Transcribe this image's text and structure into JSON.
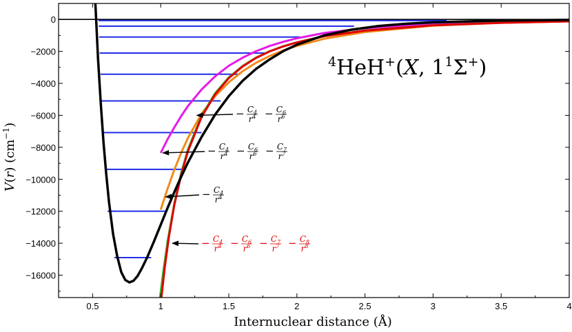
{
  "chart_data": {
    "type": "line",
    "title": "⁴HeH⁺(X, 1¹Σ⁺)",
    "title_parts": {
      "pre_sup": "4",
      "species": "HeH",
      "species_sup": "+",
      "open": "(",
      "state": "X",
      "sep": ", 1",
      "state_sup": "1",
      "sigma": "Σ",
      "sigma_sup": "+",
      "close": ")"
    },
    "xlabel": "Internuclear distance (Å)",
    "ylabel": "V(r) (cm⁻¹)",
    "ylabel_parts": {
      "v": "V",
      "open": "(",
      "r": "r",
      "close": ")",
      "unit": " (cm",
      "exp": "−1",
      "unit_close": ")"
    },
    "xlim": [
      0.25,
      4.0
    ],
    "ylim": [
      -17400,
      1000
    ],
    "x_ticks": [
      "0.5",
      "1",
      "1.5",
      "2",
      "2.5",
      "3",
      "3.5",
      "4"
    ],
    "x_tick_values": [
      0.5,
      1.0,
      1.5,
      2.0,
      2.5,
      3.0,
      3.5,
      4.0
    ],
    "y_ticks": [
      "0",
      "−2000",
      "−4000",
      "−6000",
      "−8000",
      "−10000",
      "−12000",
      "−14000",
      "−16000"
    ],
    "y_tick_values": [
      0,
      -2000,
      -4000,
      -6000,
      -8000,
      -10000,
      -12000,
      -14000,
      -16000
    ],
    "potential": {
      "color": "#000000",
      "x": [
        0.52,
        0.54,
        0.56,
        0.58,
        0.6,
        0.62,
        0.65,
        0.68,
        0.71,
        0.74,
        0.77,
        0.8,
        0.83,
        0.86,
        0.9,
        0.95,
        1.0,
        1.05,
        1.1,
        1.15,
        1.2,
        1.3,
        1.4,
        1.5,
        1.6,
        1.7,
        1.8,
        1.9,
        2.0,
        2.2,
        2.4,
        2.6,
        2.8,
        3.0,
        3.5,
        4.0
      ],
      "y": [
        1000,
        -2500,
        -5300,
        -7700,
        -9700,
        -11400,
        -13400,
        -14800,
        -15800,
        -16300,
        -16450,
        -16350,
        -16050,
        -15600,
        -14900,
        -13900,
        -12850,
        -11800,
        -10800,
        -9850,
        -8950,
        -7350,
        -5950,
        -4800,
        -3850,
        -3100,
        -2500,
        -1980,
        -1580,
        -1000,
        -640,
        -410,
        -270,
        -180,
        -70,
        -30
      ]
    },
    "vibrational_levels": {
      "color": "#1f2ee6",
      "energies": [
        -14900,
        -12000,
        -9380,
        -7080,
        -5100,
        -3430,
        -2100,
        -1100,
        -420,
        -70
      ],
      "x_left": [
        0.66,
        0.61,
        0.59,
        0.575,
        0.565,
        0.558,
        0.552,
        0.548,
        0.545,
        0.543
      ],
      "x_right": [
        0.93,
        1.04,
        1.17,
        1.3,
        1.44,
        1.58,
        1.77,
        2.02,
        2.42,
        3.1
      ]
    },
    "long_range_series": [
      {
        "color": "#e619e6",
        "terms": [
          "C4/r4",
          "C6/r6",
          "C7/r7"
        ],
        "x": [
          1.0,
          1.05,
          1.1,
          1.15,
          1.2,
          1.3,
          1.4,
          1.5,
          1.6,
          1.7,
          1.8,
          1.9,
          2.0,
          2.2,
          2.5,
          3.0,
          3.5,
          4.0
        ],
        "y": [
          -8350,
          -7500,
          -6750,
          -6050,
          -5420,
          -4380,
          -3560,
          -2900,
          -2400,
          -1990,
          -1660,
          -1400,
          -1180,
          -850,
          -550,
          -280,
          -150,
          -90
        ]
      },
      {
        "color": "#f28a1a",
        "terms": [
          "C4/r4"
        ],
        "x": [
          1.0,
          1.05,
          1.1,
          1.15,
          1.2,
          1.3,
          1.4,
          1.5,
          1.6,
          1.7,
          1.8,
          1.9,
          2.0,
          2.2,
          2.5,
          3.0,
          3.5,
          4.0
        ],
        "y": [
          -11900,
          -10600,
          -9400,
          -8350,
          -7420,
          -5900,
          -4800,
          -3930,
          -3250,
          -2710,
          -2290,
          -1940,
          -1660,
          -1210,
          -790,
          -390,
          -210,
          -120
        ]
      },
      {
        "color": "#2bb82b",
        "terms": [
          "C4/r4",
          "C6/r6"
        ],
        "x": [
          0.995,
          1.02,
          1.05,
          1.1,
          1.15,
          1.2,
          1.3,
          1.4,
          1.5,
          1.6,
          1.7,
          1.8,
          1.9,
          2.0,
          2.2,
          2.5,
          3.0,
          3.5,
          4.0
        ],
        "y": [
          -17400,
          -15700,
          -13900,
          -11500,
          -9620,
          -8130,
          -6020,
          -4620,
          -3630,
          -2920,
          -2390,
          -1990,
          -1680,
          -1430,
          -1040,
          -690,
          -360,
          -200,
          -120
        ]
      },
      {
        "color": "#e00000",
        "terms": [
          "C4/r4",
          "C6/r6",
          "C7/r7",
          "C8/r8"
        ],
        "x": [
          1.005,
          1.03,
          1.06,
          1.1,
          1.15,
          1.2,
          1.3,
          1.4,
          1.5,
          1.6,
          1.7,
          1.8,
          1.9,
          2.0,
          2.2,
          2.5,
          3.0,
          3.5,
          4.0
        ],
        "y": [
          -17400,
          -15500,
          -13600,
          -11600,
          -9750,
          -8250,
          -6100,
          -4680,
          -3670,
          -2950,
          -2410,
          -2000,
          -1690,
          -1440,
          -1050,
          -700,
          -370,
          -210,
          -120
        ]
      }
    ],
    "annotations": [
      {
        "id": "ann1",
        "color": "#000000",
        "parts": [
          {
            "sign": "−",
            "num": "C",
            "nsub": "4",
            "den": "r",
            "dsup": "4"
          },
          {
            "sign": "−",
            "num": "C",
            "nsub": "6",
            "den": "r",
            "dsup": "6"
          }
        ],
        "arrow_to": [
          1.25,
          -6000
        ]
      },
      {
        "id": "ann2",
        "color": "#000000",
        "parts": [
          {
            "sign": "−",
            "num": "C",
            "nsub": "4",
            "den": "r",
            "dsup": "4"
          },
          {
            "sign": "−",
            "num": "C",
            "nsub": "6",
            "den": "r",
            "dsup": "6"
          },
          {
            "sign": "−",
            "num": "C",
            "nsub": "7",
            "den": "r",
            "dsup": "7"
          }
        ],
        "arrow_to": [
          1.0,
          -8350
        ]
      },
      {
        "id": "ann3",
        "color": "#000000",
        "parts": [
          {
            "sign": "−",
            "num": "C",
            "nsub": "4",
            "den": "r",
            "dsup": "4"
          }
        ],
        "arrow_to": [
          1.02,
          -11100
        ]
      },
      {
        "id": "ann4",
        "color": "#e00000",
        "parts": [
          {
            "sign": "−",
            "num": "C",
            "nsub": "4",
            "den": "r",
            "dsup": "4"
          },
          {
            "sign": "−",
            "num": "C",
            "nsub": "6",
            "den": "r",
            "dsup": "6"
          },
          {
            "sign": "−",
            "num": "C",
            "nsub": "7",
            "den": "r",
            "dsup": "7"
          },
          {
            "sign": "−",
            "num": "C",
            "nsub": "8",
            "den": "r",
            "dsup": "8"
          }
        ],
        "arrow_to": [
          1.07,
          -14000
        ]
      }
    ],
    "grid": false,
    "legend": "none"
  }
}
